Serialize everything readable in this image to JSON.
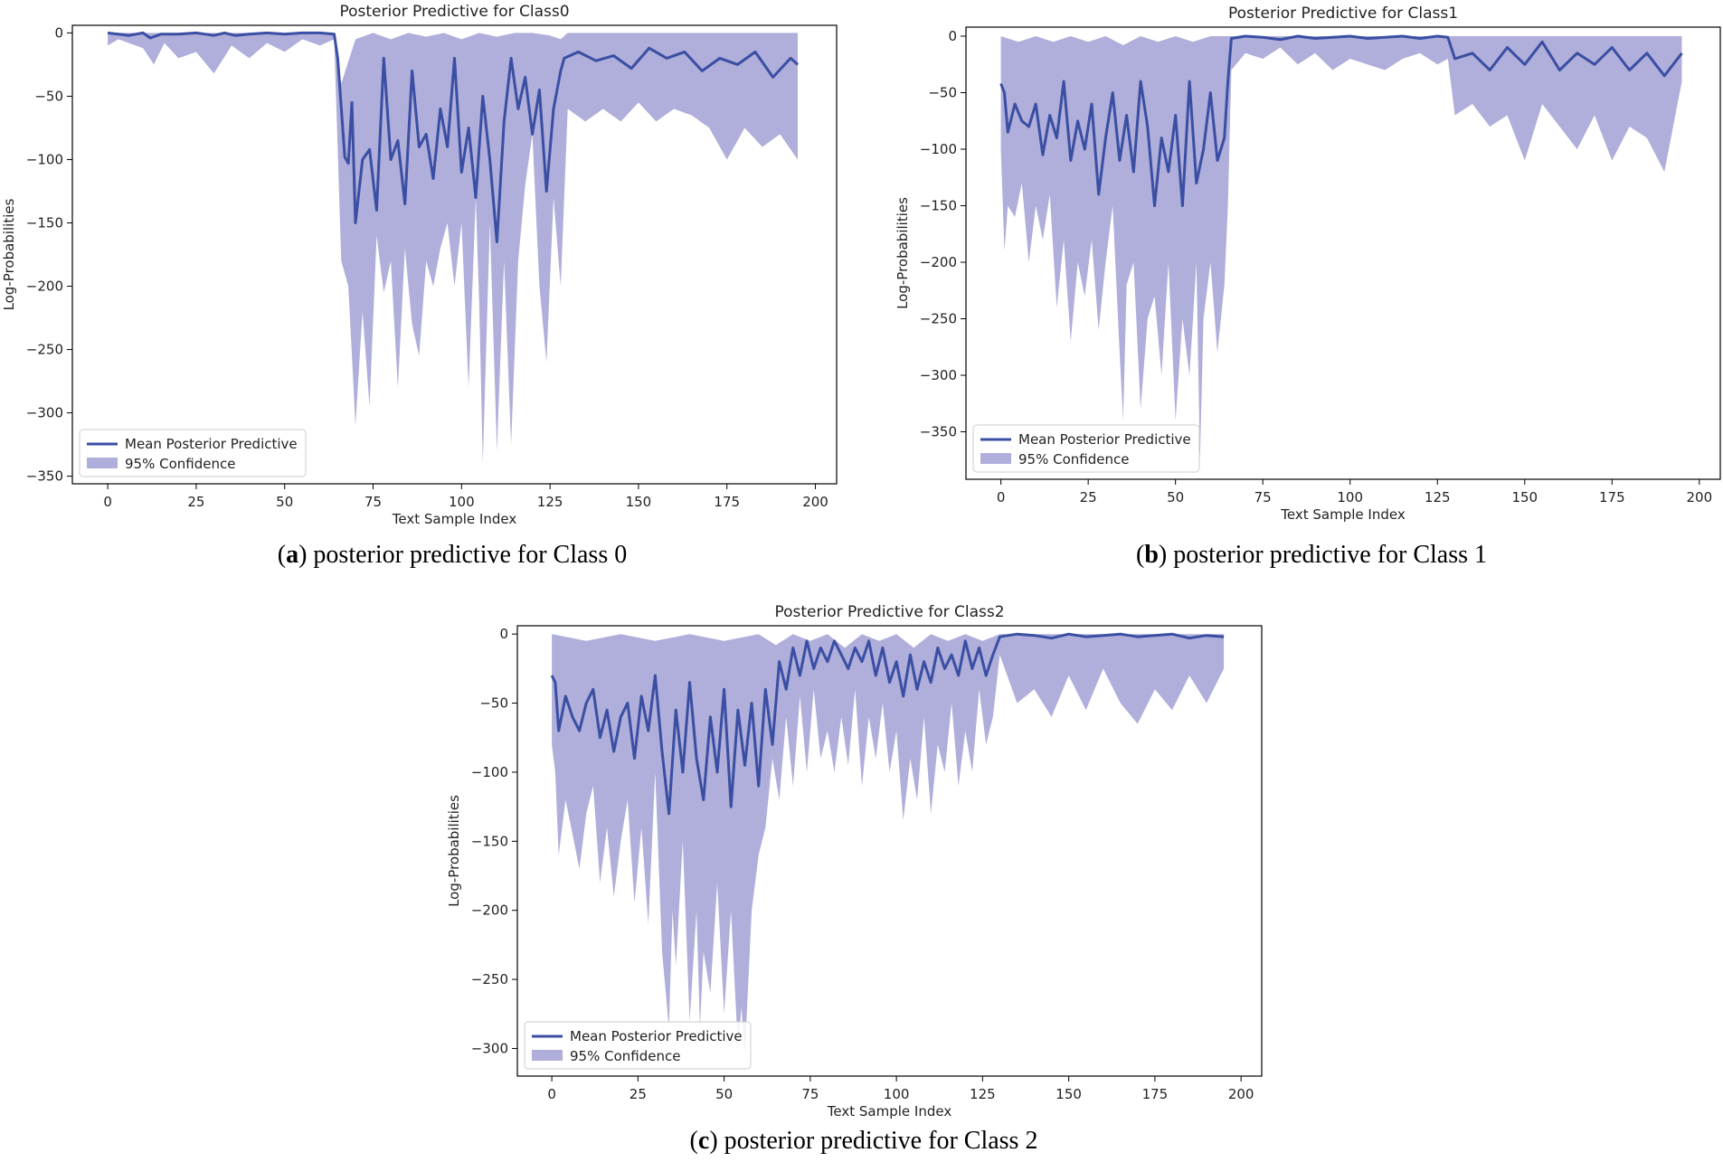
{
  "palette": {
    "mean_line": "#3a4fa3",
    "ci_fill": "#8f8ccb",
    "axis": "#000000",
    "text": "#222222"
  },
  "legend": {
    "mean_label": "Mean Posterior Predictive",
    "ci_label": "95% Confidence"
  },
  "captions": [
    {
      "letter": "a",
      "text": ") posterior predictive for Class 0"
    },
    {
      "letter": "b",
      "text": ") posterior predictive for Class 1"
    },
    {
      "letter": "c",
      "text": ") posterior predictive for Class 2"
    }
  ],
  "chart_data": [
    {
      "type": "area",
      "title": "Posterior Predictive for Class0",
      "xlabel": "Text Sample Index",
      "ylabel": "Log-Probabilities",
      "xlim": [
        -10,
        206
      ],
      "ylim": [
        -356,
        6
      ],
      "xticks": [
        0,
        25,
        50,
        75,
        100,
        125,
        150,
        175,
        200
      ],
      "yticks": [
        0,
        -50,
        -100,
        -150,
        -200,
        -250,
        -300,
        -350
      ],
      "legend_position": "bottom-left",
      "series": [
        {
          "name": "Mean Posterior Predictive",
          "kind": "line",
          "x": [
            0,
            3,
            6,
            10,
            12,
            15,
            20,
            25,
            30,
            33,
            36,
            40,
            45,
            50,
            55,
            60,
            64,
            65,
            67,
            68,
            69,
            70,
            72,
            74,
            76,
            78,
            80,
            82,
            84,
            86,
            88,
            90,
            92,
            94,
            96,
            98,
            100,
            102,
            104,
            106,
            108,
            110,
            112,
            114,
            116,
            118,
            120,
            122,
            124,
            126,
            128,
            129,
            133,
            138,
            143,
            148,
            153,
            158,
            163,
            168,
            173,
            178,
            183,
            188,
            193,
            195
          ],
          "y": [
            0,
            -1,
            -2,
            0,
            -4,
            -1,
            -1,
            0,
            -2,
            0,
            -2,
            -1,
            0,
            -1,
            0,
            0,
            -1,
            -20,
            -98,
            -103,
            -55,
            -150,
            -100,
            -92,
            -140,
            -20,
            -100,
            -85,
            -135,
            -30,
            -90,
            -80,
            -115,
            -60,
            -90,
            -20,
            -110,
            -75,
            -130,
            -50,
            -100,
            -165,
            -70,
            -20,
            -60,
            -35,
            -80,
            -45,
            -125,
            -60,
            -30,
            -20,
            -15,
            -22,
            -18,
            -28,
            -12,
            -20,
            -15,
            -30,
            -20,
            -25,
            -15,
            -35,
            -20,
            -25
          ]
        },
        {
          "name": "95% Confidence upper",
          "kind": "band_upper",
          "x": [
            0,
            64,
            66,
            70,
            75,
            80,
            85,
            90,
            95,
            100,
            105,
            110,
            115,
            120,
            125,
            128,
            130,
            195
          ],
          "y": [
            0,
            0,
            -40,
            -5,
            0,
            -5,
            0,
            -3,
            0,
            -5,
            0,
            -3,
            0,
            0,
            -2,
            -5,
            0,
            0
          ]
        },
        {
          "name": "95% Confidence lower",
          "kind": "band_lower",
          "x": [
            0,
            3,
            6,
            10,
            13,
            16,
            20,
            25,
            30,
            35,
            40,
            45,
            50,
            55,
            60,
            64,
            66,
            68,
            70,
            72,
            74,
            76,
            78,
            80,
            82,
            84,
            86,
            88,
            90,
            92,
            94,
            96,
            98,
            100,
            102,
            104,
            106,
            108,
            110,
            112,
            114,
            116,
            118,
            120,
            122,
            124,
            126,
            128,
            130,
            135,
            140,
            145,
            150,
            155,
            160,
            165,
            170,
            175,
            180,
            185,
            190,
            195
          ],
          "y": [
            -10,
            -5,
            -8,
            -12,
            -25,
            -8,
            -20,
            -15,
            -32,
            -10,
            -20,
            -8,
            -15,
            -5,
            -10,
            -5,
            -180,
            -200,
            -310,
            -220,
            -295,
            -160,
            -205,
            -180,
            -280,
            -170,
            -230,
            -255,
            -180,
            -200,
            -170,
            -150,
            -200,
            -150,
            -280,
            -90,
            -340,
            -150,
            -330,
            -180,
            -325,
            -180,
            -120,
            -80,
            -200,
            -260,
            -130,
            -200,
            -60,
            -70,
            -60,
            -70,
            -55,
            -70,
            -60,
            -65,
            -75,
            -100,
            -75,
            -90,
            -80,
            -100
          ]
        }
      ]
    },
    {
      "type": "area",
      "title": "Posterior Predictive for Class1",
      "xlabel": "Text Sample Index",
      "ylabel": "Log-Probabilities",
      "xlim": [
        -10,
        206
      ],
      "ylim": [
        -392,
        8
      ],
      "xticks": [
        0,
        25,
        50,
        75,
        100,
        125,
        150,
        175,
        200
      ],
      "yticks": [
        0,
        -50,
        -100,
        -150,
        -200,
        -250,
        -300,
        -350
      ],
      "legend_position": "bottom-left",
      "series": [
        {
          "name": "Mean Posterior Predictive",
          "kind": "line",
          "x": [
            0,
            1,
            2,
            4,
            6,
            8,
            10,
            12,
            14,
            16,
            18,
            20,
            22,
            24,
            26,
            28,
            30,
            32,
            34,
            36,
            38,
            40,
            42,
            44,
            46,
            48,
            50,
            52,
            54,
            56,
            58,
            60,
            62,
            64,
            65,
            66,
            70,
            75,
            80,
            85,
            90,
            95,
            100,
            105,
            110,
            115,
            120,
            125,
            128,
            130,
            135,
            140,
            145,
            150,
            155,
            160,
            165,
            170,
            175,
            180,
            185,
            190,
            195
          ],
          "y": [
            -42,
            -50,
            -85,
            -60,
            -75,
            -80,
            -60,
            -105,
            -70,
            -90,
            -40,
            -110,
            -75,
            -100,
            -60,
            -140,
            -90,
            -50,
            -110,
            -70,
            -120,
            -40,
            -80,
            -150,
            -90,
            -120,
            -70,
            -150,
            -40,
            -130,
            -100,
            -50,
            -110,
            -90,
            -40,
            -2,
            0,
            -1,
            -3,
            0,
            -2,
            -1,
            0,
            -2,
            -1,
            0,
            -2,
            0,
            -1,
            -20,
            -15,
            -30,
            -10,
            -25,
            -5,
            -30,
            -15,
            -25,
            -10,
            -30,
            -15,
            -35,
            -15
          ]
        },
        {
          "name": "95% Confidence upper",
          "kind": "band_upper",
          "x": [
            0,
            5,
            10,
            15,
            20,
            25,
            30,
            35,
            40,
            45,
            50,
            55,
            60,
            65,
            195
          ],
          "y": [
            0,
            -5,
            0,
            -5,
            0,
            -5,
            0,
            -8,
            0,
            -5,
            0,
            -5,
            0,
            0,
            0
          ]
        },
        {
          "name": "95% Confidence lower",
          "kind": "band_lower",
          "x": [
            0,
            1,
            2,
            4,
            6,
            8,
            10,
            12,
            14,
            16,
            18,
            20,
            22,
            24,
            26,
            28,
            30,
            32,
            34,
            35,
            36,
            38,
            40,
            42,
            44,
            46,
            48,
            50,
            52,
            54,
            56,
            57,
            58,
            60,
            62,
            64,
            65,
            66,
            70,
            75,
            80,
            85,
            90,
            95,
            100,
            105,
            110,
            115,
            120,
            125,
            128,
            130,
            135,
            140,
            145,
            150,
            155,
            160,
            165,
            170,
            175,
            180,
            185,
            190,
            195
          ],
          "y": [
            -100,
            -190,
            -150,
            -160,
            -130,
            -200,
            -150,
            -180,
            -140,
            -240,
            -180,
            -270,
            -200,
            -230,
            -180,
            -260,
            -200,
            -150,
            -280,
            -340,
            -220,
            -200,
            -330,
            -250,
            -230,
            -300,
            -200,
            -340,
            -250,
            -300,
            -200,
            -375,
            -250,
            -200,
            -280,
            -220,
            -150,
            -30,
            -15,
            -20,
            -10,
            -25,
            -15,
            -30,
            -20,
            -25,
            -30,
            -20,
            -15,
            -25,
            -20,
            -70,
            -60,
            -80,
            -70,
            -110,
            -60,
            -80,
            -100,
            -70,
            -110,
            -80,
            -90,
            -120,
            -40
          ]
        }
      ]
    },
    {
      "type": "area",
      "title": "Posterior Predictive for Class2",
      "xlabel": "Text Sample Index",
      "ylabel": "Log-Probabilities",
      "xlim": [
        -10,
        206
      ],
      "ylim": [
        -320,
        6
      ],
      "xticks": [
        0,
        25,
        50,
        75,
        100,
        125,
        150,
        175,
        200
      ],
      "yticks": [
        0,
        -50,
        -100,
        -150,
        -200,
        -250,
        -300
      ],
      "legend_position": "bottom-left",
      "series": [
        {
          "name": "Mean Posterior Predictive",
          "kind": "line",
          "x": [
            0,
            1,
            2,
            4,
            6,
            8,
            10,
            12,
            14,
            16,
            18,
            20,
            22,
            24,
            26,
            28,
            30,
            32,
            34,
            36,
            38,
            40,
            42,
            44,
            46,
            48,
            50,
            52,
            54,
            56,
            58,
            60,
            62,
            64,
            66,
            68,
            70,
            72,
            74,
            76,
            78,
            80,
            82,
            84,
            86,
            88,
            90,
            92,
            94,
            96,
            98,
            100,
            102,
            104,
            106,
            108,
            110,
            112,
            114,
            116,
            118,
            120,
            122,
            124,
            126,
            128,
            130,
            135,
            140,
            145,
            150,
            155,
            160,
            165,
            170,
            175,
            180,
            185,
            190,
            195
          ],
          "y": [
            -30,
            -35,
            -70,
            -45,
            -60,
            -70,
            -50,
            -40,
            -75,
            -55,
            -85,
            -60,
            -50,
            -90,
            -45,
            -70,
            -30,
            -85,
            -130,
            -55,
            -100,
            -35,
            -90,
            -120,
            -60,
            -100,
            -40,
            -125,
            -55,
            -95,
            -50,
            -110,
            -40,
            -80,
            -20,
            -40,
            -10,
            -30,
            -5,
            -25,
            -10,
            -20,
            -5,
            -15,
            -25,
            -10,
            -20,
            -5,
            -30,
            -10,
            -35,
            -20,
            -45,
            -15,
            -40,
            -20,
            -35,
            -10,
            -25,
            -15,
            -30,
            -5,
            -25,
            -10,
            -30,
            -15,
            -2,
            0,
            -1,
            -3,
            0,
            -2,
            -1,
            0,
            -2,
            -1,
            0,
            -3,
            -1,
            -2
          ]
        },
        {
          "name": "95% Confidence upper",
          "kind": "band_upper",
          "x": [
            0,
            10,
            20,
            30,
            40,
            50,
            60,
            65,
            70,
            75,
            80,
            85,
            90,
            95,
            100,
            105,
            110,
            115,
            120,
            125,
            130,
            195
          ],
          "y": [
            0,
            -5,
            0,
            -5,
            0,
            -5,
            0,
            -8,
            0,
            -5,
            0,
            -10,
            0,
            -5,
            0,
            -10,
            0,
            -5,
            0,
            -5,
            0,
            0
          ]
        },
        {
          "name": "95% Confidence lower",
          "kind": "band_lower",
          "x": [
            0,
            1,
            2,
            4,
            6,
            8,
            10,
            12,
            14,
            16,
            18,
            20,
            22,
            24,
            26,
            28,
            30,
            32,
            34,
            35,
            36,
            38,
            40,
            42,
            43,
            44,
            46,
            48,
            50,
            52,
            54,
            55,
            56,
            58,
            60,
            62,
            64,
            66,
            68,
            70,
            72,
            74,
            76,
            78,
            80,
            82,
            84,
            86,
            88,
            90,
            92,
            94,
            96,
            98,
            100,
            102,
            104,
            106,
            108,
            110,
            112,
            114,
            116,
            118,
            120,
            122,
            124,
            126,
            128,
            130,
            135,
            140,
            145,
            150,
            155,
            160,
            165,
            170,
            175,
            180,
            185,
            190,
            195
          ],
          "y": [
            -80,
            -100,
            -160,
            -120,
            -145,
            -170,
            -130,
            -110,
            -180,
            -140,
            -190,
            -150,
            -120,
            -195,
            -140,
            -210,
            -100,
            -230,
            -285,
            -200,
            -240,
            -150,
            -280,
            -200,
            -285,
            -230,
            -260,
            -180,
            -275,
            -200,
            -300,
            -270,
            -305,
            -200,
            -160,
            -140,
            -90,
            -120,
            -60,
            -110,
            -45,
            -100,
            -40,
            -90,
            -70,
            -100,
            -60,
            -95,
            -40,
            -110,
            -60,
            -90,
            -50,
            -100,
            -70,
            -135,
            -90,
            -120,
            -60,
            -130,
            -80,
            -100,
            -50,
            -110,
            -70,
            -100,
            -40,
            -80,
            -60,
            -15,
            -50,
            -40,
            -60,
            -30,
            -55,
            -25,
            -50,
            -65,
            -40,
            -55,
            -30,
            -50,
            -25
          ]
        }
      ]
    }
  ]
}
